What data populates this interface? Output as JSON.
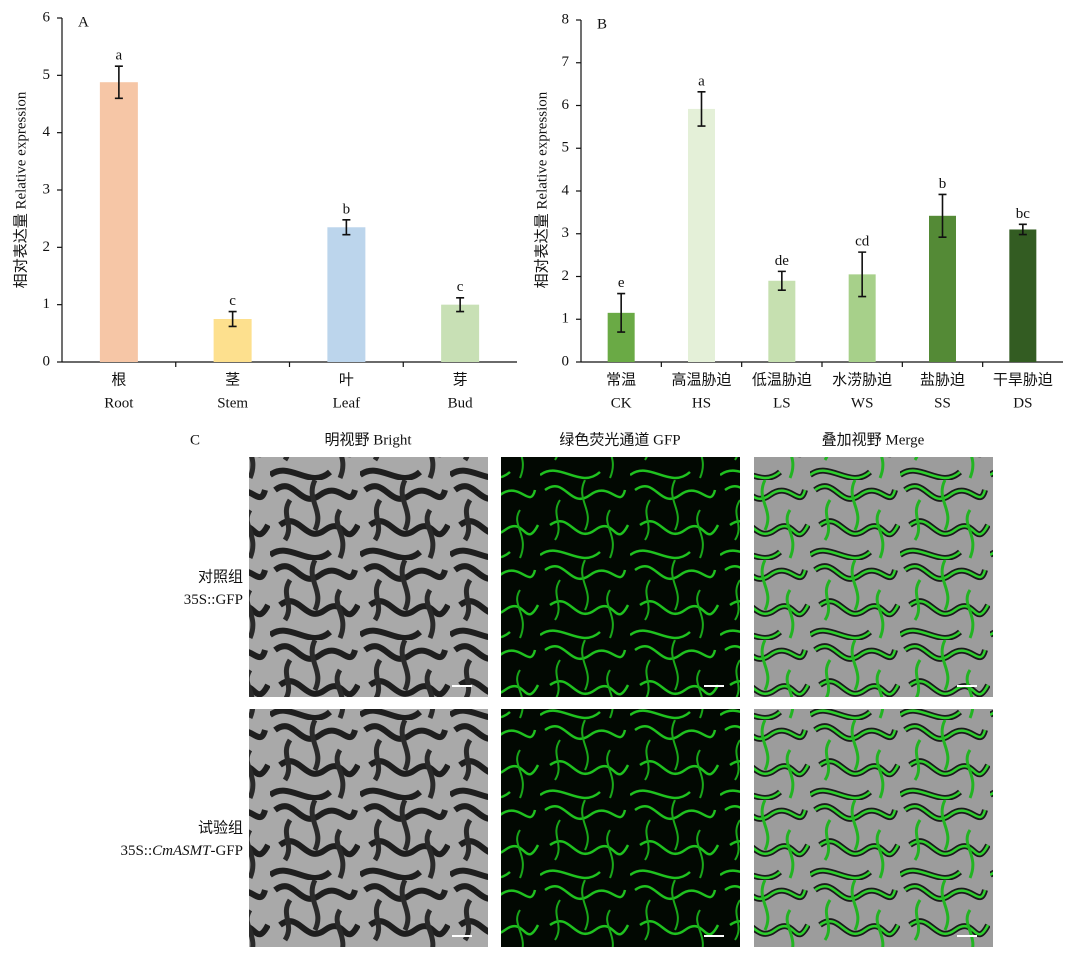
{
  "chart_data": [
    {
      "type": "bar",
      "panel": "A",
      "ylabel": "相对表达量 Relative expression",
      "categories": [
        [
          "根",
          "Root"
        ],
        [
          "茎",
          "Stem"
        ],
        [
          "叶",
          "Leaf"
        ],
        [
          "芽",
          "Bud"
        ]
      ],
      "values": [
        4.88,
        0.75,
        2.35,
        1.0
      ],
      "errors": [
        0.28,
        0.13,
        0.13,
        0.12
      ],
      "annotations": [
        "a",
        "c",
        "b",
        "c"
      ],
      "colors": [
        "#f6c6a6",
        "#fde08e",
        "#bcd5ec",
        "#c8e0b5"
      ],
      "ylim": [
        0,
        6
      ],
      "yticks": [
        0,
        1,
        2,
        3,
        4,
        5,
        6
      ]
    },
    {
      "type": "bar",
      "panel": "B",
      "ylabel": "相对表达量 Relative expression",
      "categories": [
        [
          "常温",
          "CK"
        ],
        [
          "高温胁迫",
          "HS"
        ],
        [
          "低温胁迫",
          "LS"
        ],
        [
          "水涝胁迫",
          "WS"
        ],
        [
          "盐胁迫",
          "SS"
        ],
        [
          "干旱胁迫",
          "DS"
        ]
      ],
      "values": [
        1.15,
        5.92,
        1.9,
        2.05,
        3.42,
        3.1
      ],
      "errors": [
        0.45,
        0.4,
        0.22,
        0.52,
        0.5,
        0.12
      ],
      "annotations": [
        "e",
        "a",
        "de",
        "cd",
        "b",
        "bc"
      ],
      "colors": [
        "#6aaa45",
        "#e4f0d8",
        "#c6e0b0",
        "#a7d08a",
        "#548a36",
        "#335c22"
      ],
      "ylim": [
        0,
        8
      ],
      "yticks": [
        0,
        1,
        2,
        3,
        4,
        5,
        6,
        7,
        8
      ]
    }
  ],
  "panel_c": {
    "panel": "C",
    "columns": [
      "明视野 Bright",
      "绿色荧光通道 GFP",
      "叠加视野 Merge"
    ],
    "rows": [
      {
        "group": "对照组",
        "construct": [
          "35S::GFP"
        ]
      },
      {
        "group": "试验组",
        "construct": [
          "35S::",
          "CmASMT",
          "-GFP"
        ]
      }
    ]
  }
}
